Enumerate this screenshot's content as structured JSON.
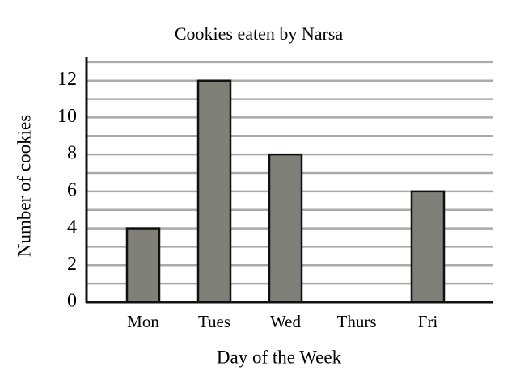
{
  "chart_data": {
    "type": "bar",
    "title": "Cookies eaten by Narsa",
    "x_label": "Day of the Week",
    "y_label": "Number of cookies",
    "categories": [
      "Mon",
      "Tues",
      "Wed",
      "Thurs",
      "Fri"
    ],
    "values": [
      4,
      12,
      8,
      0,
      6
    ],
    "color": "#808079",
    "ylim": [
      0,
      13.3
    ],
    "yticks": [
      0,
      2,
      4,
      6,
      8,
      10,
      12
    ],
    "minor_yticks": [
      1,
      3,
      5,
      7,
      9,
      11,
      13
    ],
    "grid": true
  }
}
